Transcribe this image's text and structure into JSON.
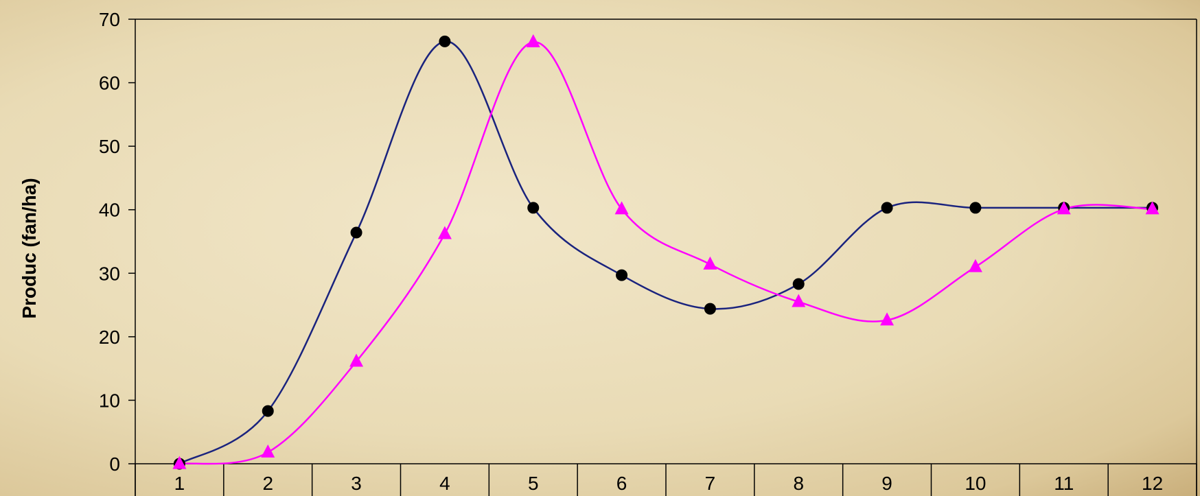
{
  "chart_data": {
    "type": "line",
    "title": "",
    "xlabel": "",
    "ylabel": "Produc (fan/ha)",
    "categories": [
      "1",
      "2",
      "3",
      "4",
      "5",
      "6",
      "7",
      "8",
      "9",
      "10",
      "11",
      "12"
    ],
    "x": [
      1,
      2,
      3,
      4,
      5,
      6,
      7,
      8,
      9,
      10,
      11,
      12
    ],
    "ylim": [
      0,
      70
    ],
    "yticks": [
      0,
      10,
      20,
      30,
      40,
      50,
      60,
      70
    ],
    "grid": false,
    "legend": "none",
    "series": [
      {
        "color": "#1a237e",
        "marker": "circle",
        "marker_color": "#000000",
        "values": [
          0,
          8.3,
          36.4,
          66.5,
          40.3,
          29.7,
          24.4,
          28.3,
          40.3,
          40.3,
          40.3,
          40.3
        ]
      },
      {
        "color": "#ff00ff",
        "marker": "triangle",
        "marker_color": "#ff00ff",
        "values": [
          0,
          1.8,
          16.1,
          36.2,
          66.4,
          40.1,
          31.4,
          25.5,
          22.6,
          31.0,
          40.1,
          40.1
        ]
      }
    ]
  }
}
